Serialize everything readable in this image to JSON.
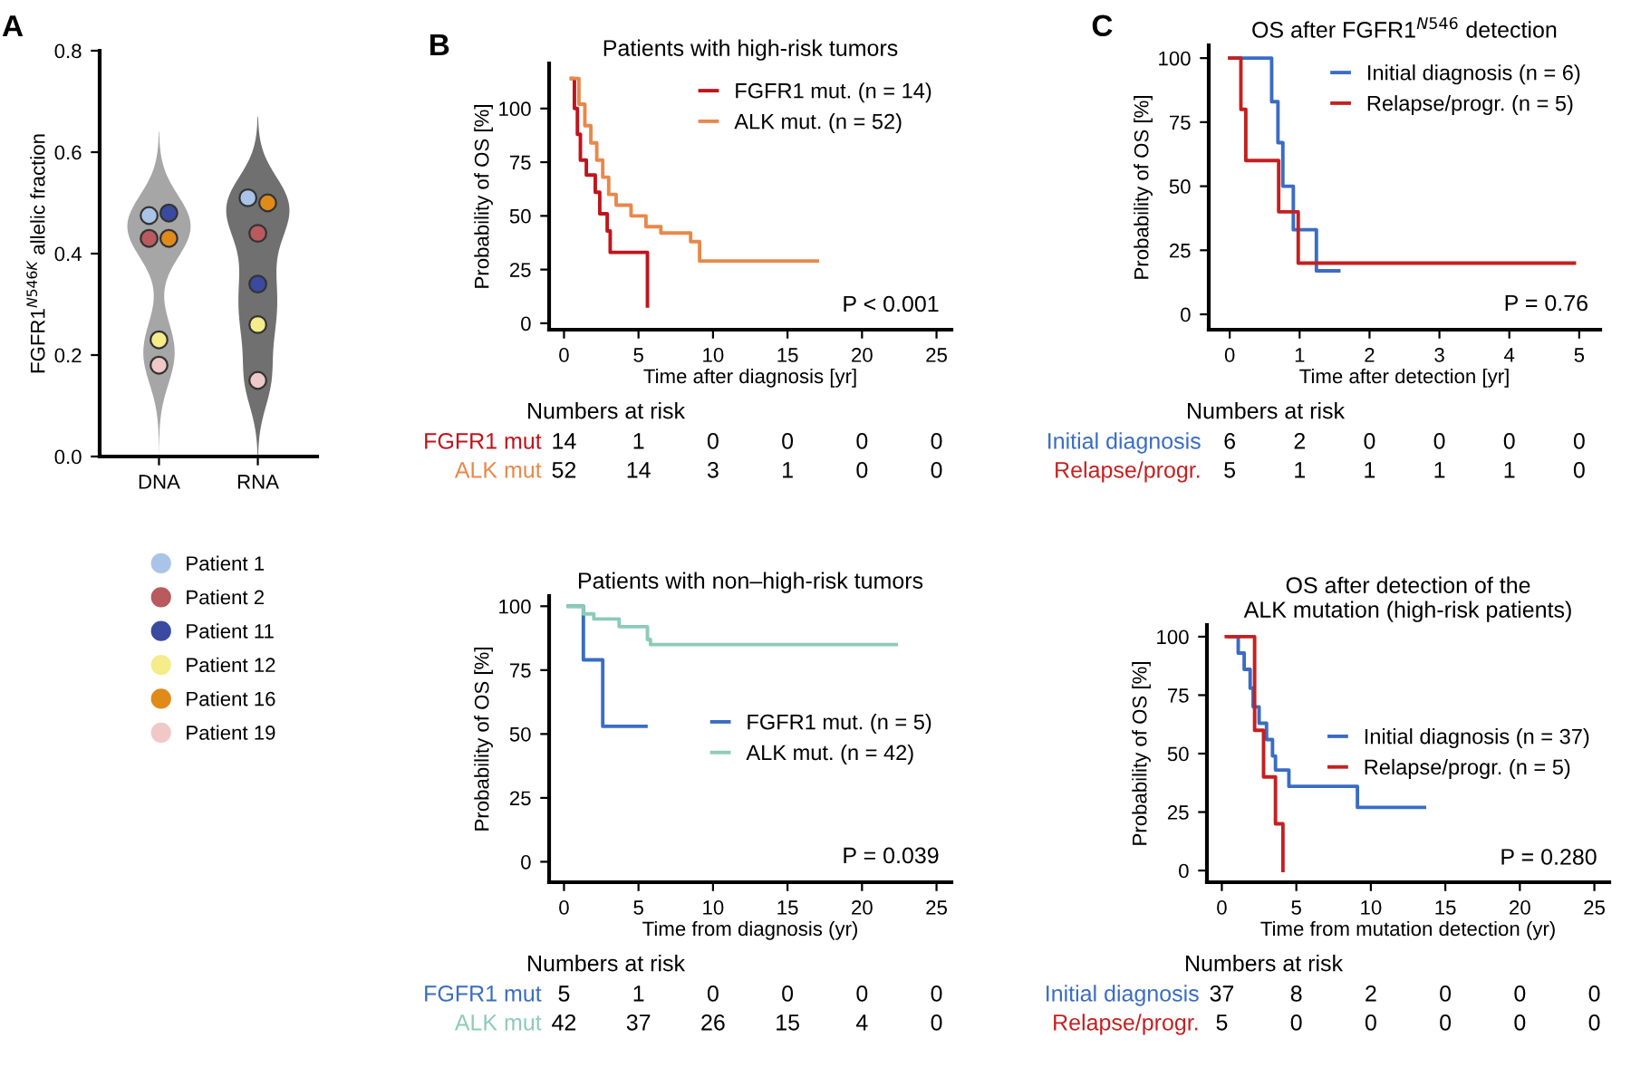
{
  "chart_data": [
    {
      "type": "scatter",
      "categories": [
        "DNA",
        "RNA"
      ],
      "ylabel": "FGFR1$^{N546K}$ allelic fraction",
      "ylim": [
        0,
        0.8
      ],
      "yticks": [
        {
          "value": 0,
          "label": "0.0"
        },
        0.2,
        0.4,
        0.6,
        0.8
      ],
      "marker": "circle",
      "legend": "bottom",
      "grid": false,
      "tick_labels": true,
      "annotations": [
        "A"
      ],
      "series": [
        {
          "name": "Patient 1",
          "color": "#a9c4e8",
          "values": [
            0.475,
            0.51
          ]
        },
        {
          "name": "Patient 2",
          "color": "#b85a5e",
          "values": [
            0.43,
            0.44
          ]
        },
        {
          "name": "Patient 11",
          "color": "#3a4aa0",
          "values": [
            0.48,
            0.34
          ]
        },
        {
          "name": "Patient 12",
          "color": "#f5ec8a",
          "values": [
            0.23,
            0.26
          ]
        },
        {
          "name": "Patient 16",
          "color": "#e08a1a",
          "values": [
            0.43,
            0.5
          ]
        },
        {
          "name": "Patient 19",
          "color": "#f0c8c8",
          "values": [
            0.18,
            0.15
          ]
        }
      ]
    },
    {
      "type": "step",
      "title": "Patients with high-risk tumors",
      "xlabel": "Time after diagnosis [yr]",
      "ylabel": "Probability of OS [%]",
      "xlim": [
        -1,
        26
      ],
      "xticks": [
        0,
        5,
        10,
        15,
        20,
        25
      ],
      "ylim": [
        -3,
        121
      ],
      "yticks": [
        0,
        25,
        50,
        75,
        100
      ],
      "legend": "top right",
      "grid": false,
      "marker": "none",
      "line_style": "solid",
      "annotations": [
        "B",
        "P < 0.001",
        "Numbers at risk",
        "FGFR1 mut",
        "14",
        "1",
        "0",
        "0",
        "0",
        "0",
        "ALK mut",
        "52",
        "14",
        "3",
        "1",
        "0",
        "0"
      ],
      "series": [
        {
          "name": "FGFR1 mut. (n = 14)",
          "color": "#c0141c",
          "x": [
            0.5,
            0.7,
            0.9,
            1.1,
            1.5,
            2.1,
            2.4,
            2.9,
            3.1,
            5.6,
            5.6
          ],
          "values": [
            114,
            100,
            88,
            76,
            69,
            61,
            51,
            43,
            33,
            17,
            8
          ]
        },
        {
          "name": "ALK mut. (n = 52)",
          "color": "#e8884a",
          "x": [
            0.5,
            1.0,
            1.4,
            1.8,
            2.2,
            2.6,
            3.0,
            3.5,
            4.5,
            5.5,
            6.5,
            8.5,
            9.1,
            17
          ],
          "values": [
            114,
            102,
            92,
            84,
            76,
            68,
            60,
            55,
            50,
            45,
            42,
            38,
            29,
            29
          ]
        }
      ]
    },
    {
      "type": "step",
      "title": "OS after FGFR1$^{N546}$ detection",
      "xlabel": "Time after detection [yr]",
      "ylabel": "Probability of OS [%]",
      "xlim": [
        -0.3,
        5.3
      ],
      "xticks": [
        0,
        1,
        2,
        3,
        4,
        5
      ],
      "ylim": [
        -6,
        105
      ],
      "yticks": [
        0,
        25,
        50,
        75,
        100
      ],
      "legend": "top right",
      "grid": false,
      "marker": "none",
      "line_style": "solid",
      "annotations": [
        "C",
        "P = 0.76",
        "Numbers at risk",
        "Initial diagnosis",
        "6",
        "2",
        "0",
        "0",
        "0",
        "0",
        "Relapse/progr.",
        "5",
        "1",
        "1",
        "1",
        "1",
        "0"
      ],
      "series": [
        {
          "name": "Initial diagnosis (n = 6)",
          "color": "#3a6cc4",
          "x": [
            0,
            0.6,
            0.69,
            0.76,
            0.91,
            1.24,
            1.56
          ],
          "values": [
            100,
            83,
            67,
            50,
            33,
            17,
            17
          ]
        },
        {
          "name": "Relapse/progr. (n = 5)",
          "color": "#c42020",
          "x": [
            0,
            0.16,
            0.23,
            0.7,
            0.98,
            4.93
          ],
          "values": [
            100,
            80,
            60,
            40,
            20,
            20
          ]
        }
      ]
    },
    {
      "type": "step",
      "title": "Patients with non–high-risk tumors",
      "xlabel": "Time from diagnosis (yr)",
      "ylabel": "Probability of OS [%]",
      "xlim": [
        -1,
        26
      ],
      "xticks": [
        0,
        5,
        10,
        15,
        20,
        25
      ],
      "ylim": [
        -8,
        104
      ],
      "yticks": [
        0,
        25,
        50,
        75,
        100
      ],
      "legend": "right",
      "grid": false,
      "marker": "none",
      "line_style": "solid",
      "annotations": [
        "P = 0.039",
        "Numbers at risk",
        "FGFR1 mut",
        "5",
        "1",
        "0",
        "0",
        "0",
        "0",
        "ALK mut",
        "42",
        "37",
        "26",
        "15",
        "4",
        "0"
      ],
      "series": [
        {
          "name": "FGFR1 mut. (n = 5)",
          "color": "#3a6cc4",
          "x": [
            0.3,
            1.3,
            2.6,
            5.5
          ],
          "values": [
            100,
            79,
            53,
            53
          ]
        },
        {
          "name": "ALK mut. (n = 42)",
          "color": "#8ccbb8",
          "x": [
            0.3,
            1.3,
            2.0,
            3.7,
            5.6,
            5.8,
            22.3
          ],
          "values": [
            100,
            97,
            95,
            92,
            87,
            85,
            85
          ]
        }
      ]
    },
    {
      "type": "step",
      "title": "OS after detection of the\nALK mutation (high-risk patients)",
      "xlabel": "Time from mutation detection (yr)",
      "ylabel": "Probability of OS [%]",
      "xlim": [
        -1,
        26
      ],
      "xticks": [
        0,
        5,
        10,
        15,
        20,
        25
      ],
      "ylim": [
        -5,
        105
      ],
      "yticks": [
        0,
        25,
        50,
        75,
        100
      ],
      "legend": "right",
      "grid": false,
      "marker": "none",
      "line_style": "solid",
      "annotations": [
        "P = 0.280",
        "Numbers at risk",
        "Initial diagnosis",
        "37",
        "8",
        "2",
        "0",
        "0",
        "0",
        "Relapse/progr.",
        "5",
        "0",
        "0",
        "0",
        "0",
        "0"
      ],
      "series": [
        {
          "name": "Initial diagnosis (n = 37)",
          "color": "#3a6cc4",
          "x": [
            0.5,
            1.1,
            1.5,
            1.9,
            2.1,
            2.5,
            3.0,
            3.4,
            3.6,
            4.5,
            9.1,
            13.6
          ],
          "values": [
            100,
            93,
            86,
            78,
            70,
            63,
            56,
            49,
            43,
            36,
            27,
            27
          ]
        },
        {
          "name": "Relapse/progr. (n = 5)",
          "color": "#c42020",
          "x": [
            0.3,
            2.2,
            2.8,
            3.6,
            4.1
          ],
          "values": [
            100,
            60,
            40,
            20,
            0
          ]
        }
      ]
    }
  ]
}
